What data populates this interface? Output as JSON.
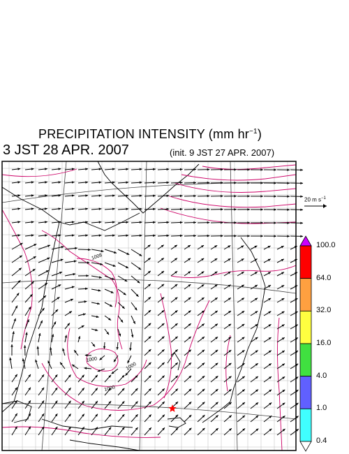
{
  "title_main": "PRECIPITATION INTENSITY (mm hr",
  "title_sup": "−1",
  "title_close": ")",
  "valid_time": "3 JST 28 APR. 2007",
  "init_time": "(init. 9 JST 27 APR. 2007)",
  "reference_vector": {
    "label": "20 m s",
    "label_sup": "−1"
  },
  "contour_labels": [
    "1008",
    "1000",
    "1000",
    "1000"
  ],
  "colorbar": {
    "levels": [
      "100.0",
      "64.0",
      "32.0",
      "16.0",
      "4.0",
      "1.0",
      "0.4"
    ],
    "colors": [
      "#cc00ff",
      "#ff0000",
      "#ffa040",
      "#ffff40",
      "#40e040",
      "#6060ff",
      "#40ffff",
      "#ffffff"
    ]
  },
  "marker": {
    "name": "location-marker",
    "color": "#ff0000"
  },
  "colors": {
    "isobar": "#cc0066",
    "grid": "#888888",
    "coast": "#000000"
  }
}
